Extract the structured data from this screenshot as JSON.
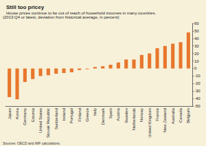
{
  "chart_data": {
    "type": "bar",
    "title": "Still too pricey",
    "subtitle": "House prices continue to be out of reach of household incomes in many countries.",
    "annotations": [
      "(2013:Q4 or latest, deviation from historical average, in percent)",
      "Sources: OECD and IMF calculations."
    ],
    "categories": [
      "Japan",
      "Korea",
      "Germany",
      "Estonia",
      "United States",
      "Slovak Republic",
      "Switzerland",
      "Ireland",
      "Portugal",
      "Finland",
      "Greece",
      "Italy",
      "Denmark",
      "Spain",
      "Austria",
      "Sweden",
      "Netherlands",
      "Norway",
      "United Kingdom",
      "France",
      "New Zealand",
      "Australia",
      "Canada",
      "Belgium"
    ],
    "values": [
      -38,
      -41,
      -18,
      -14,
      -10,
      -9,
      -7,
      -6,
      -5,
      -2,
      -1,
      2,
      3,
      5,
      8,
      12,
      12,
      18,
      20,
      27,
      30,
      33,
      35,
      48
    ],
    "color": "#e8762d",
    "ylim": [
      -50,
      60
    ],
    "yticks": [
      -50,
      -40,
      -30,
      -20,
      -10,
      0,
      10,
      20,
      30,
      40,
      50,
      60
    ],
    "grid": false
  }
}
